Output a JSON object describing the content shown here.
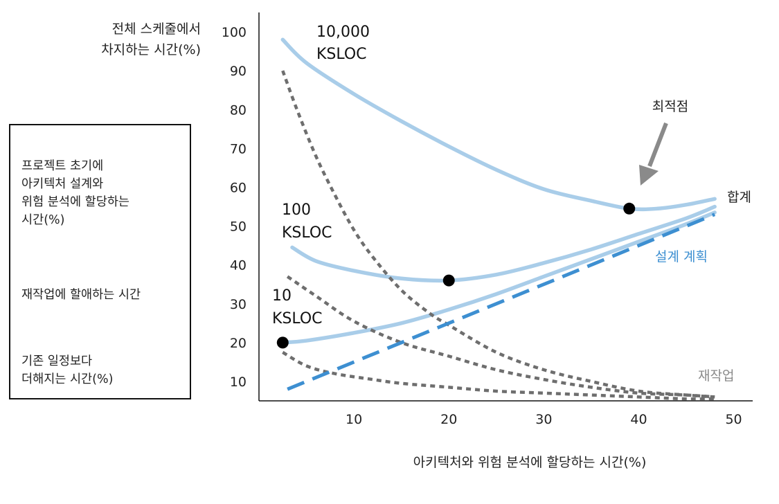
{
  "chart_data": {
    "type": "line",
    "ylabel": "전체 스케줄에서\n차지하는 시간(%)",
    "xlabel": "아키텍처와 위험 분석에 할당하는 시간(%)",
    "x_ticks": [
      10,
      20,
      30,
      40,
      50
    ],
    "y_ticks": [
      10,
      20,
      30,
      40,
      50,
      60,
      70,
      80,
      90,
      100
    ],
    "xlim": [
      0,
      52
    ],
    "ylim": [
      5,
      105
    ],
    "colors": {
      "total": "#a9cde9",
      "rework": "#6e6e6e",
      "design": "#3d8fd1"
    },
    "series": [
      {
        "name": "10,000 KSLOC",
        "kind": "total",
        "x": [
          2.5,
          5,
          10,
          15,
          20,
          25,
          30,
          35,
          39,
          42,
          45,
          48
        ],
        "y": [
          98,
          92,
          84,
          77,
          70.5,
          64.5,
          59.5,
          56.5,
          54.5,
          54.5,
          55.5,
          57
        ]
      },
      {
        "name": "100 KSLOC",
        "kind": "total",
        "x": [
          3.5,
          6,
          10,
          15,
          20,
          25,
          30,
          35,
          40,
          45,
          48
        ],
        "y": [
          44.5,
          41,
          38.5,
          36.5,
          36,
          37.5,
          40.5,
          44,
          48,
          52,
          55
        ]
      },
      {
        "name": "10 KSLOC",
        "kind": "total",
        "x": [
          2.5,
          5,
          10,
          15,
          20,
          25,
          30,
          35,
          40,
          45,
          48
        ],
        "y": [
          20,
          20.5,
          22.5,
          25,
          28.5,
          32.5,
          37,
          41.5,
          46,
          50.5,
          53.5
        ]
      },
      {
        "name": "rework-10000",
        "kind": "rework",
        "x": [
          2.5,
          4,
          6,
          8,
          10,
          12,
          15,
          18,
          20,
          25,
          30,
          35,
          40,
          45,
          48
        ],
        "y": [
          90,
          80,
          68,
          58,
          49,
          42,
          33.5,
          27.5,
          24.5,
          17.5,
          13,
          10,
          7.5,
          6.5,
          6
        ]
      },
      {
        "name": "rework-100",
        "kind": "rework",
        "x": [
          3,
          6,
          10,
          15,
          20,
          25,
          30,
          35,
          40,
          45,
          48
        ],
        "y": [
          37,
          32,
          25.5,
          20,
          16.5,
          13,
          10.5,
          8.5,
          7,
          6.5,
          6
        ]
      },
      {
        "name": "rework-10",
        "kind": "rework",
        "x": [
          2.5,
          5,
          8,
          12,
          15,
          20,
          25,
          30,
          35,
          40,
          45,
          48
        ],
        "y": [
          17.5,
          14,
          12,
          10.5,
          9.5,
          8.5,
          7.5,
          7,
          6.5,
          6,
          5.5,
          5.5
        ]
      },
      {
        "name": "design",
        "kind": "design",
        "x": [
          3,
          48
        ],
        "y": [
          8,
          53
        ]
      }
    ],
    "markers": [
      {
        "x": 2.5,
        "y": 20
      },
      {
        "x": 20,
        "y": 36
      },
      {
        "x": 39,
        "y": 54.5
      }
    ],
    "annotations": {
      "big_project": "10,000\nKSLOC",
      "mid_project": "100\nKSLOC",
      "small_project": "10\nKSLOC",
      "optimum": "최적점",
      "total": "합계",
      "design_plan": "설계 계획",
      "rework": "재작업"
    },
    "legend": {
      "position": "left",
      "entries": [
        {
          "label": "프로젝트 초기에\n아키텍처 설계와\n위험 분석에 할당하는\n시간(%)",
          "style": "dashed"
        },
        {
          "label": "재작업에 할애하는 시간",
          "style": "dotted"
        },
        {
          "label": "기존 일정보다\n더해지는 시간(%)",
          "style": "solid"
        }
      ]
    }
  }
}
